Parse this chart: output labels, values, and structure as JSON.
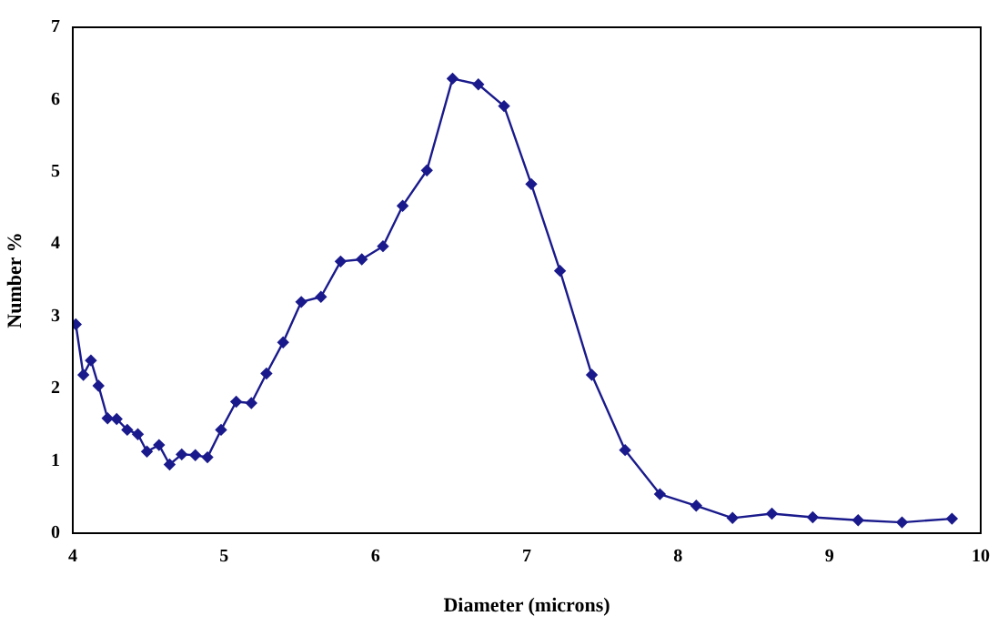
{
  "chart_data": {
    "type": "line",
    "xlabel": "Diameter (microns)",
    "ylabel": "Number %",
    "xlim": [
      4,
      10
    ],
    "xticks": [
      4,
      5,
      6,
      7,
      8,
      9,
      10
    ],
    "ylim": [
      0,
      7
    ],
    "yticks": [
      0,
      1,
      2,
      3,
      4,
      5,
      6,
      7
    ],
    "grid": false,
    "legend": false,
    "marker": "diamond",
    "line_style": "solid",
    "series": [
      {
        "color": "#1a1a8c",
        "x": [
          4.02,
          4.07,
          4.12,
          4.17,
          4.23,
          4.29,
          4.36,
          4.43,
          4.49,
          4.57,
          4.64,
          4.72,
          4.81,
          4.89,
          4.98,
          5.08,
          5.18,
          5.28,
          5.39,
          5.51,
          5.64,
          5.77,
          5.91,
          6.05,
          6.18,
          6.34,
          6.51,
          6.68,
          6.85,
          7.03,
          7.22,
          7.43,
          7.65,
          7.88,
          8.12,
          8.36,
          8.62,
          8.89,
          9.19,
          9.48,
          9.81
        ],
        "values": [
          2.89,
          2.19,
          2.39,
          2.04,
          1.59,
          1.58,
          1.43,
          1.37,
          1.13,
          1.22,
          0.95,
          1.09,
          1.08,
          1.05,
          1.43,
          1.82,
          1.8,
          2.21,
          2.64,
          3.2,
          3.27,
          3.76,
          3.79,
          3.97,
          4.53,
          5.02,
          6.29,
          6.21,
          5.91,
          4.83,
          3.63,
          2.19,
          1.15,
          0.54,
          0.38,
          0.21,
          0.27,
          0.22,
          0.18,
          0.15,
          0.2
        ]
      }
    ]
  }
}
